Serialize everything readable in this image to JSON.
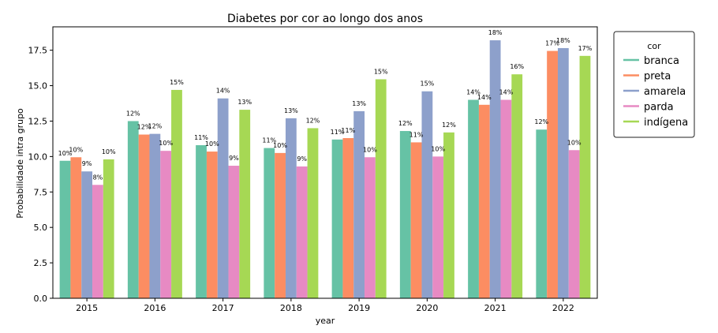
{
  "chart_data": {
    "type": "bar",
    "title": "Diabetes por cor ao longo dos anos",
    "xlabel": "year",
    "ylabel": "Probabilidade intra grupo",
    "ylim": [
      0,
      19.15
    ],
    "yticks": [
      "0.0",
      "2.5",
      "5.0",
      "7.5",
      "10.0",
      "12.5",
      "15.0",
      "17.5"
    ],
    "categories": [
      "2015",
      "2016",
      "2017",
      "2018",
      "2019",
      "2020",
      "2021",
      "2022"
    ],
    "legend": {
      "title": "cor",
      "placement": "outside-right-top"
    },
    "grid": false,
    "series": [
      {
        "name": "branca",
        "color": "#66c2a5",
        "values": [
          9.7,
          12.5,
          10.8,
          10.6,
          11.2,
          11.8,
          14.0,
          11.9
        ],
        "labels": [
          "10%",
          "12%",
          "11%",
          "11%",
          "11%",
          "12%",
          "14%",
          "12%"
        ]
      },
      {
        "name": "preta",
        "color": "#fc8d62",
        "values": [
          9.95,
          11.55,
          10.35,
          10.25,
          11.3,
          11.0,
          13.65,
          17.45
        ],
        "labels": [
          "10%",
          "12%",
          "10%",
          "10%",
          "11%",
          "11%",
          "14%",
          "17%"
        ]
      },
      {
        "name": "amarela",
        "color": "#8da0cb",
        "values": [
          8.95,
          11.6,
          14.1,
          12.7,
          13.2,
          14.6,
          18.2,
          17.65
        ],
        "labels": [
          "9%",
          "12%",
          "14%",
          "13%",
          "13%",
          "15%",
          "18%",
          "18%"
        ]
      },
      {
        "name": "parda",
        "color": "#e78ac3",
        "values": [
          8.0,
          10.4,
          9.35,
          9.3,
          9.95,
          10.0,
          14.0,
          10.45
        ],
        "labels": [
          "8%",
          "10%",
          "9%",
          "9%",
          "10%",
          "10%",
          "14%",
          "10%"
        ]
      },
      {
        "name": "indígena",
        "color": "#a6d854",
        "values": [
          9.8,
          14.7,
          13.3,
          12.0,
          15.45,
          11.7,
          15.8,
          17.1
        ],
        "labels": [
          "10%",
          "15%",
          "13%",
          "12%",
          "15%",
          "12%",
          "16%",
          "17%"
        ]
      }
    ]
  }
}
